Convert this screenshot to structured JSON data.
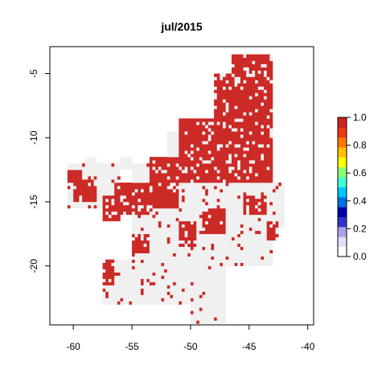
{
  "chart_data": {
    "type": "heatmap",
    "title": "jul/2015",
    "xlabel": "",
    "ylabel": "",
    "xlim": [
      -62,
      -39.5
    ],
    "ylim": [
      -24.6,
      -2.9
    ],
    "x_ticks": [
      -60,
      -55,
      -50,
      -45,
      -40
    ],
    "y_ticks": [
      -5,
      -10,
      -15,
      -20
    ],
    "x_tick_labels": [
      "-60",
      "-55",
      "-50",
      "-45",
      "-40"
    ],
    "y_tick_labels": [
      "-5",
      "-10",
      "-15",
      "-20"
    ],
    "grid": false,
    "legend": {
      "placement": "right",
      "range": [
        0,
        1
      ],
      "ticks": [
        0.0,
        0.2,
        0.4,
        0.6,
        0.8,
        1.0
      ],
      "tick_labels": [
        "0.0",
        "0.2",
        "0.4",
        "0.6",
        "0.8",
        "1.0"
      ],
      "colors": [
        "#ffffff",
        "#e2e0f4",
        "#a7a3e8",
        "#3333cc",
        "#0000aa",
        "#0070e0",
        "#00c8ff",
        "#40ffd0",
        "#8cff70",
        "#ffff00",
        "#ffc000",
        "#ff7a00",
        "#ee3a10",
        "#cc2222"
      ]
    },
    "colors": {
      "value_0": "#f0f0f0",
      "value_1": "#cc2a26"
    },
    "cell_size_deg": 0.25,
    "red_regions": [
      {
        "lon": [
          -48,
          -43
        ],
        "lat": [
          -13.5,
          -5
        ]
      },
      {
        "lon": [
          -46.5,
          -43
        ],
        "lat": [
          -5,
          -3.5
        ]
      },
      {
        "lon": [
          -51,
          -48
        ],
        "lat": [
          -13.5,
          -8.5
        ]
      },
      {
        "lon": [
          -53.5,
          -51
        ],
        "lat": [
          -15.5,
          -11.5
        ]
      },
      {
        "lon": [
          -56.5,
          -53.5
        ],
        "lat": [
          -16,
          -13.5
        ]
      },
      {
        "lon": [
          -57.5,
          -56
        ],
        "lat": [
          -16.5,
          -14.5
        ]
      },
      {
        "lon": [
          -60,
          -58
        ],
        "lat": [
          -15,
          -13
        ]
      },
      {
        "lon": [
          -60.5,
          -59.5
        ],
        "lat": [
          -13.5,
          -12.5
        ]
      },
      {
        "lon": [
          -51,
          -49.5
        ],
        "lat": [
          -18.5,
          -16.5
        ]
      },
      {
        "lon": [
          -55,
          -53.5
        ],
        "lat": [
          -19,
          -17.5
        ]
      },
      {
        "lon": [
          -43.5,
          -42.5
        ],
        "lat": [
          -18,
          -16.5
        ]
      },
      {
        "lon": [
          -57.5,
          -56.5
        ],
        "lat": [
          -21.5,
          -19.5
        ]
      },
      {
        "lon": [
          -49,
          -47
        ],
        "lat": [
          -17.5,
          -15.5
        ]
      },
      {
        "lon": [
          -45.5,
          -43.5
        ],
        "lat": [
          -16,
          -14.5
        ]
      }
    ],
    "grey_regions": [
      {
        "lon": [
          -60.5,
          -56
        ],
        "lat": [
          -15.5,
          -12
        ]
      },
      {
        "lon": [
          -55,
          -43
        ],
        "lat": [
          -20,
          -12
        ]
      },
      {
        "lon": [
          -57.5,
          -47
        ],
        "lat": [
          -23,
          -19.5
        ]
      },
      {
        "lon": [
          -50,
          -47
        ],
        "lat": [
          -24.5,
          -22.5
        ]
      },
      {
        "lon": [
          -52,
          -48.5
        ],
        "lat": [
          -12.5,
          -9.5
        ]
      },
      {
        "lon": [
          -48.5,
          -43
        ],
        "lat": [
          -16.5,
          -13
        ]
      },
      {
        "lon": [
          -43,
          -42
        ],
        "lat": [
          -17,
          -13.5
        ]
      },
      {
        "lon": [
          -48,
          -47
        ],
        "lat": [
          -10,
          -7
        ]
      },
      {
        "lon": [
          -59,
          -58
        ],
        "lat": [
          -12.5,
          -11.5
        ]
      },
      {
        "lon": [
          -56,
          -55
        ],
        "lat": [
          -12.5,
          -11.5
        ]
      }
    ]
  }
}
